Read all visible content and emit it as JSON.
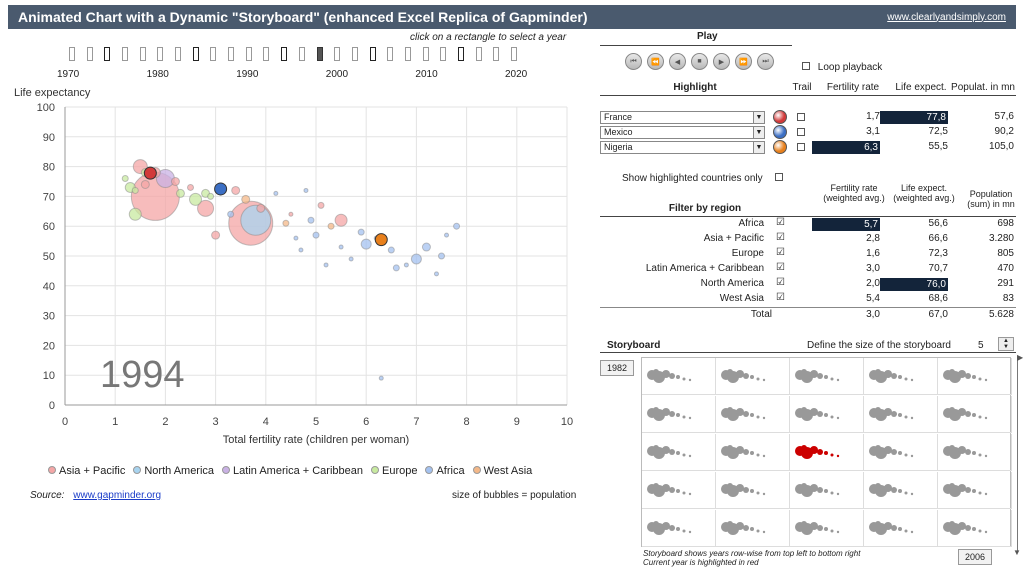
{
  "header": {
    "title": "Animated Chart with a Dynamic \"Storyboard\" (enhanced Excel Replica of Gapminder)",
    "site": "www.clearlyandsimply.com"
  },
  "timeline": {
    "hint": "click on a rectangle to select a year",
    "labels": [
      "1970",
      "1980",
      "1990",
      "2000",
      "2010",
      "2020"
    ],
    "current_year": 1994
  },
  "play": {
    "title": "Play",
    "loop_label": "Loop playback",
    "buttons": [
      "first-icon",
      "rewind-icon",
      "step-back-icon",
      "stop-icon",
      "play-icon",
      "step-forward-icon",
      "last-icon"
    ]
  },
  "highlight": {
    "title": "Highlight",
    "trail": "Trail",
    "col_fert": "Fertility rate",
    "col_life": "Life expect.",
    "col_pop": "Populat. in mn",
    "rows": [
      {
        "country": "France",
        "color": "#d23a3a",
        "fert": "1,7",
        "life": "77,8",
        "pop": "57,6",
        "hl": "life"
      },
      {
        "country": "Mexico",
        "color": "#3c6fc4",
        "fert": "3,1",
        "life": "72,5",
        "pop": "90,2",
        "hl": ""
      },
      {
        "country": "Nigeria",
        "color": "#e8801c",
        "fert": "6,3",
        "life": "55,5",
        "pop": "105,0",
        "hl": "fert"
      }
    ],
    "show_only": "Show highlighted countries only"
  },
  "regions": {
    "title": "Filter by region",
    "col_fert": "Fertility rate (weighted avg.)",
    "col_life": "Life expect. (weighted avg.)",
    "col_pop": "Population (sum) in mn",
    "rows": [
      {
        "name": "Africa",
        "fert": "5,7",
        "life": "56,6",
        "pop": "698",
        "hl": "fert"
      },
      {
        "name": "Asia + Pacific",
        "fert": "2,8",
        "life": "66,6",
        "pop": "3.280",
        "hl": ""
      },
      {
        "name": "Europe",
        "fert": "1,6",
        "life": "72,3",
        "pop": "805",
        "hl": ""
      },
      {
        "name": "Latin America + Caribbean",
        "fert": "3,0",
        "life": "70,7",
        "pop": "470",
        "hl": ""
      },
      {
        "name": "North America",
        "fert": "2,0",
        "life": "76,0",
        "pop": "291",
        "hl": "life"
      },
      {
        "name": "West Asia",
        "fert": "5,4",
        "life": "68,6",
        "pop": "83",
        "hl": ""
      }
    ],
    "total": {
      "name": "Total",
      "fert": "3,0",
      "life": "67,0",
      "pop": "5.628"
    }
  },
  "storyboard": {
    "title": "Storyboard",
    "size_label": "Define the size of the storyboard",
    "size": "5",
    "start_year": "1982",
    "end_year": "2006",
    "note1": "Storyboard shows years row-wise from top left to bottom right",
    "note2": "Current year is highlighted in red",
    "highlighted_cell": 12
  },
  "chart_data": {
    "type": "scatter",
    "ylabel": "Life expectancy",
    "xlabel": "Total fertility rate (children per woman)",
    "xlim": [
      0,
      10
    ],
    "ylim": [
      0,
      100
    ],
    "xticks": [
      "0",
      "1",
      "2",
      "3",
      "4",
      "5",
      "6",
      "7",
      "8",
      "9",
      "10"
    ],
    "yticks": [
      "0",
      "10",
      "20",
      "30",
      "40",
      "50",
      "60",
      "70",
      "80",
      "90",
      "100"
    ],
    "year_label": "1994",
    "legend": [
      {
        "name": "Asia + Pacific",
        "color": "#f4a6a6"
      },
      {
        "name": "North America",
        "color": "#a8d4f0"
      },
      {
        "name": "Latin America + Caribbean",
        "color": "#c9b1e4"
      },
      {
        "name": "Europe",
        "color": "#c8eaa0"
      },
      {
        "name": "Africa",
        "color": "#a4c2f0"
      },
      {
        "name": "West Asia",
        "color": "#f4b888"
      }
    ],
    "source_label": "Source:",
    "source_link": "www.gapminder.org",
    "size_note": "size of bubbles = population",
    "points": [
      {
        "x": 1.8,
        "y": 70,
        "s": 24,
        "c": 0
      },
      {
        "x": 3.7,
        "y": 61,
        "s": 22,
        "c": 0
      },
      {
        "x": 1.5,
        "y": 80,
        "s": 7,
        "c": 0
      },
      {
        "x": 2.8,
        "y": 66,
        "s": 8,
        "c": 0
      },
      {
        "x": 3.0,
        "y": 57,
        "s": 4,
        "c": 0
      },
      {
        "x": 5.5,
        "y": 62,
        "s": 6,
        "c": 0
      },
      {
        "x": 3.4,
        "y": 72,
        "s": 4,
        "c": 0
      },
      {
        "x": 2.2,
        "y": 75,
        "s": 4,
        "c": 0
      },
      {
        "x": 1.6,
        "y": 74,
        "s": 4,
        "c": 0
      },
      {
        "x": 2.5,
        "y": 73,
        "s": 3,
        "c": 0
      },
      {
        "x": 1.8,
        "y": 78,
        "s": 5,
        "c": 0
      },
      {
        "x": 3.9,
        "y": 66,
        "s": 4,
        "c": 0
      },
      {
        "x": 5.1,
        "y": 67,
        "s": 3,
        "c": 0
      },
      {
        "x": 4.5,
        "y": 64,
        "s": 2,
        "c": 0
      },
      {
        "x": 3.8,
        "y": 62,
        "s": 15,
        "c": 1
      },
      {
        "x": 2.0,
        "y": 76,
        "s": 9,
        "c": 2
      },
      {
        "x": 1.3,
        "y": 73,
        "s": 5,
        "c": 3
      },
      {
        "x": 1.4,
        "y": 64,
        "s": 6,
        "c": 3
      },
      {
        "x": 2.6,
        "y": 69,
        "s": 6,
        "c": 3
      },
      {
        "x": 2.8,
        "y": 71,
        "s": 4,
        "c": 3
      },
      {
        "x": 2.3,
        "y": 71,
        "s": 4,
        "c": 3
      },
      {
        "x": 1.6,
        "y": 78,
        "s": 4,
        "c": 3
      },
      {
        "x": 1.2,
        "y": 76,
        "s": 3,
        "c": 3
      },
      {
        "x": 1.4,
        "y": 72,
        "s": 3,
        "c": 3
      },
      {
        "x": 2.9,
        "y": 70,
        "s": 3,
        "c": 3
      },
      {
        "x": 6.0,
        "y": 54,
        "s": 5,
        "c": 4
      },
      {
        "x": 7.0,
        "y": 49,
        "s": 5,
        "c": 4
      },
      {
        "x": 7.2,
        "y": 53,
        "s": 4,
        "c": 4
      },
      {
        "x": 5.9,
        "y": 58,
        "s": 3,
        "c": 4
      },
      {
        "x": 6.5,
        "y": 52,
        "s": 3,
        "c": 4
      },
      {
        "x": 5.0,
        "y": 57,
        "s": 3,
        "c": 4
      },
      {
        "x": 4.9,
        "y": 62,
        "s": 3,
        "c": 4
      },
      {
        "x": 6.6,
        "y": 46,
        "s": 3,
        "c": 4
      },
      {
        "x": 7.8,
        "y": 60,
        "s": 3,
        "c": 4
      },
      {
        "x": 7.5,
        "y": 50,
        "s": 3,
        "c": 4
      },
      {
        "x": 5.5,
        "y": 53,
        "s": 2,
        "c": 4
      },
      {
        "x": 6.2,
        "y": 56,
        "s": 2,
        "c": 4
      },
      {
        "x": 4.7,
        "y": 52,
        "s": 2,
        "c": 4
      },
      {
        "x": 6.8,
        "y": 47,
        "s": 2,
        "c": 4
      },
      {
        "x": 7.4,
        "y": 44,
        "s": 2,
        "c": 4
      },
      {
        "x": 5.2,
        "y": 47,
        "s": 2,
        "c": 4
      },
      {
        "x": 6.3,
        "y": 9,
        "s": 2,
        "c": 4
      },
      {
        "x": 5.7,
        "y": 49,
        "s": 2,
        "c": 4
      },
      {
        "x": 4.2,
        "y": 71,
        "s": 2,
        "c": 4
      },
      {
        "x": 7.6,
        "y": 57,
        "s": 2,
        "c": 4
      },
      {
        "x": 4.6,
        "y": 56,
        "s": 2,
        "c": 4
      },
      {
        "x": 3.3,
        "y": 64,
        "s": 3,
        "c": 4
      },
      {
        "x": 4.8,
        "y": 72,
        "s": 2,
        "c": 4
      },
      {
        "x": 4.4,
        "y": 61,
        "s": 3,
        "c": 5
      },
      {
        "x": 3.6,
        "y": 69,
        "s": 4,
        "c": 5
      },
      {
        "x": 5.3,
        "y": 60,
        "s": 3,
        "c": 5
      }
    ],
    "highlighted": [
      {
        "country": "France",
        "x": 1.7,
        "y": 77.8,
        "color": "#d23a3a"
      },
      {
        "country": "Mexico",
        "x": 3.1,
        "y": 72.5,
        "color": "#3c6fc4"
      },
      {
        "country": "Nigeria",
        "x": 6.3,
        "y": 55.5,
        "color": "#e8801c"
      }
    ]
  }
}
